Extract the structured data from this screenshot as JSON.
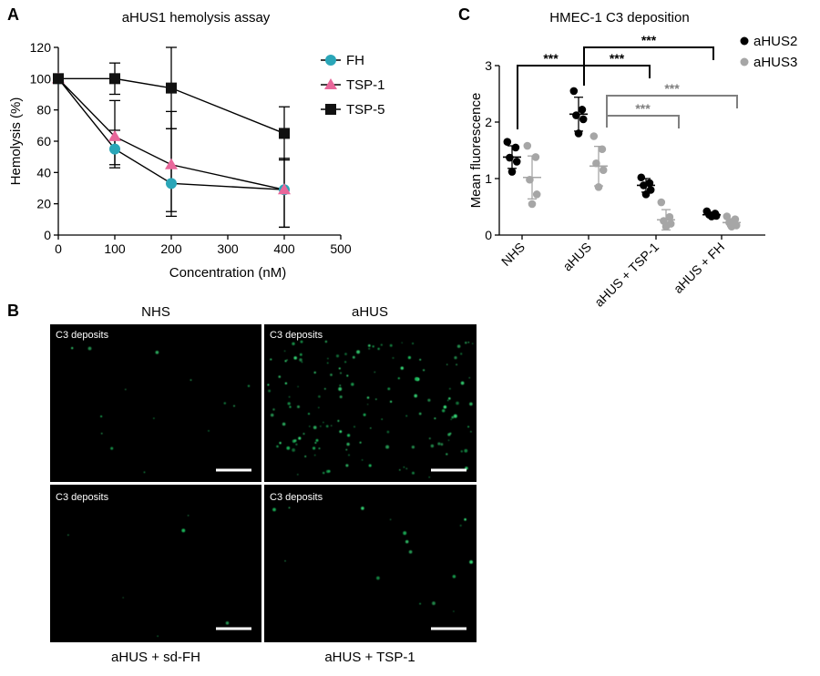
{
  "panel_labels": {
    "a": "A",
    "b": "B",
    "c": "C"
  },
  "chart_data": [
    {
      "type": "line",
      "title": "aHUS1 hemolysis assay",
      "xlabel": "Concentration (nM)",
      "ylabel": "Hemolysis (%)",
      "xlim": [
        0,
        500
      ],
      "ylim": [
        0,
        120
      ],
      "xticks": [
        0,
        100,
        200,
        300,
        400,
        500
      ],
      "yticks": [
        0,
        20,
        40,
        60,
        80,
        100,
        120
      ],
      "legend_position": "top-right",
      "series": [
        {
          "name": "FH",
          "marker": "circle",
          "color": "#2aa6b8",
          "x": [
            0,
            100,
            200,
            400
          ],
          "y": [
            100,
            55,
            33,
            29
          ],
          "err_low": [
            null,
            45,
            12,
            5
          ],
          "err_high": [
            null,
            67,
            68,
            49
          ]
        },
        {
          "name": "TSP-1",
          "marker": "triangle",
          "color": "#e8679a",
          "x": [
            0,
            100,
            200,
            400
          ],
          "y": [
            100,
            63,
            45,
            29
          ],
          "err_low": [
            null,
            43,
            15,
            5
          ],
          "err_high": [
            null,
            86,
            79,
            49
          ]
        },
        {
          "name": "TSP-5",
          "marker": "square",
          "color": "#111111",
          "x": [
            0,
            100,
            200,
            400
          ],
          "y": [
            100,
            100,
            94,
            65
          ],
          "err_low": [
            null,
            90,
            68,
            48
          ],
          "err_high": [
            null,
            110,
            120,
            82
          ]
        }
      ]
    },
    {
      "type": "scatter",
      "title": "HMEC-1 C3 deposition",
      "ylabel": "Mean fluorescence",
      "ylim": [
        0,
        3
      ],
      "yticks": [
        0,
        1,
        2,
        3
      ],
      "categories": [
        "NHS",
        "aHUS",
        "aHUS + TSP-1",
        "aHUS + FH"
      ],
      "legend_position": "top-right",
      "series": [
        {
          "name": "aHUS2",
          "color": "#000000",
          "points": [
            [
              1.65,
              1.55,
              1.37,
              1.3,
              1.12
            ],
            [
              2.55,
              2.22,
              2.12,
              2.05,
              1.8
            ],
            [
              1.02,
              0.92,
              0.88,
              0.8,
              0.72
            ],
            [
              0.42,
              0.38,
              0.36,
              0.34,
              0.33
            ]
          ],
          "mean": [
            1.38,
            2.14,
            0.88,
            0.36
          ],
          "sd": [
            0.2,
            0.3,
            0.12,
            0.04
          ]
        },
        {
          "name": "aHUS3",
          "color": "#a6a6a6",
          "points": [
            [
              1.58,
              1.38,
              0.98,
              0.72,
              0.55
            ],
            [
              1.75,
              1.52,
              1.27,
              1.15,
              0.85
            ],
            [
              0.58,
              0.32,
              0.25,
              0.2,
              0.15
            ],
            [
              0.33,
              0.28,
              0.22,
              0.17,
              0.15
            ]
          ],
          "mean": [
            1.02,
            1.22,
            0.27,
            0.22
          ],
          "sd": [
            0.38,
            0.35,
            0.18,
            0.07
          ]
        }
      ],
      "significance": [
        {
          "from": 0,
          "to": 1,
          "label": "***",
          "series": "aHUS2"
        },
        {
          "from": 1,
          "to": 2,
          "label": "***",
          "series": "aHUS2"
        },
        {
          "from": 1,
          "to": 3,
          "label": "***",
          "series": "aHUS2"
        },
        {
          "from": 1,
          "to": 2,
          "label": "***",
          "series": "aHUS3"
        },
        {
          "from": 1,
          "to": 3,
          "label": "***",
          "series": "aHUS3"
        }
      ]
    }
  ],
  "micrographs": [
    {
      "title": "NHS",
      "overlay": "C3 deposits",
      "caption_position": "top"
    },
    {
      "title": "aHUS",
      "overlay": "C3 deposits",
      "caption_position": "top"
    },
    {
      "title": "aHUS + sd-FH",
      "overlay": "C3 deposits",
      "caption_position": "bottom"
    },
    {
      "title": "aHUS + TSP-1",
      "overlay": "C3 deposits",
      "caption_position": "bottom"
    }
  ]
}
